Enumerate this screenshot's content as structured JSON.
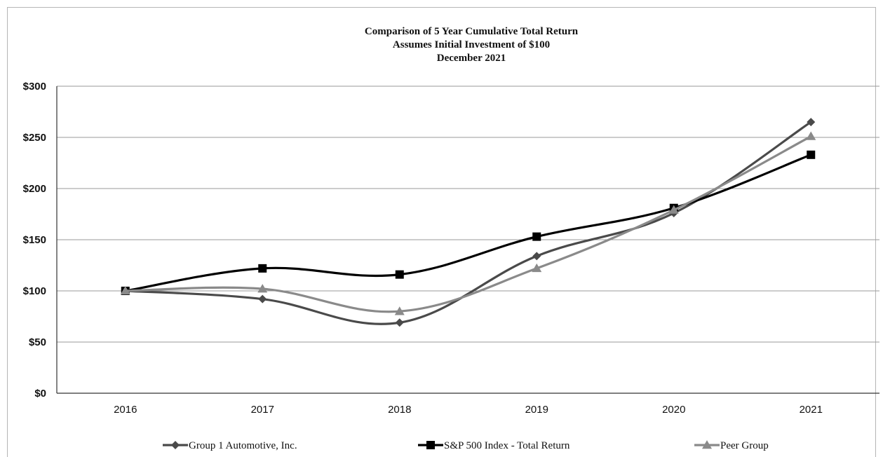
{
  "chart_data": {
    "type": "line",
    "title": [
      "Comparison of 5 Year Cumulative Total Return",
      "Assumes Initial Investment of $100",
      "December 2021"
    ],
    "categories": [
      "2016",
      "2017",
      "2018",
      "2019",
      "2020",
      "2021"
    ],
    "yticks": [
      "$0",
      "$50",
      "$100",
      "$150",
      "$200",
      "$250",
      "$300"
    ],
    "ylim": [
      0,
      300
    ],
    "grid": true,
    "legend_position": "bottom",
    "series": [
      {
        "name": "Group 1 Automotive, Inc.",
        "marker": "diamond",
        "color": "#4a4a4a",
        "values": [
          100,
          92,
          69,
          134,
          176,
          265
        ]
      },
      {
        "name": "S&P 500 Index - Total Return",
        "marker": "square",
        "color": "#000000",
        "values": [
          100,
          122,
          116,
          153,
          181,
          233
        ]
      },
      {
        "name": "Peer Group",
        "marker": "triangle",
        "color": "#8a8a8a",
        "values": [
          100,
          102,
          80,
          122,
          179,
          251
        ]
      }
    ]
  }
}
